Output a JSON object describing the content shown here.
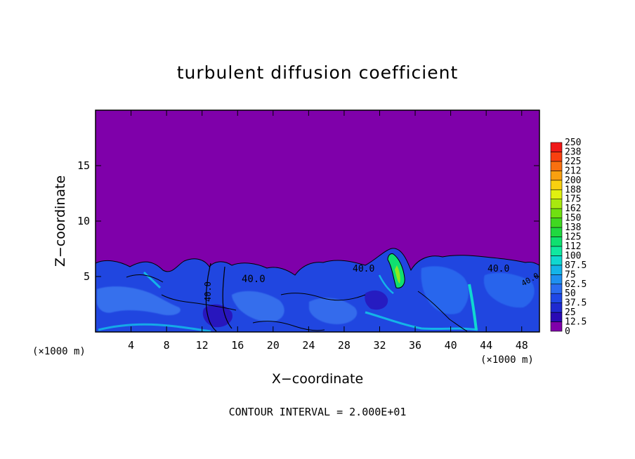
{
  "chart_data": {
    "type": "heatmap",
    "title": "turbulent diffusion coefficient",
    "xlabel": "X−coordinate",
    "ylabel": "Z−coordinate",
    "x_unit_left": "(×1000 m)",
    "x_unit_right": "(×1000 m)",
    "xlim": [
      0,
      50
    ],
    "ylim": [
      0,
      20
    ],
    "xticks": [
      4,
      8,
      12,
      16,
      20,
      24,
      28,
      32,
      36,
      40,
      44,
      48
    ],
    "yticks": [
      5,
      10,
      15
    ],
    "footer": "CONTOUR INTERVAL = 2.000E+01",
    "colorbar": {
      "levels": [
        "0",
        "12.5",
        "25",
        "37.5",
        "50",
        "62.5",
        "75",
        "87.5",
        "100",
        "112",
        "125",
        "138",
        "150",
        "162",
        "175",
        "188",
        "200",
        "212",
        "225",
        "238",
        "250"
      ],
      "colors": [
        "#7f00aa",
        "#2a0ab4",
        "#1f2ad0",
        "#1f48e6",
        "#2a6cf0",
        "#1e90f0",
        "#14b4e8",
        "#10d8d0",
        "#10e8a0",
        "#10e070",
        "#20d840",
        "#40d820",
        "#70e010",
        "#a8e810",
        "#e0f010",
        "#f8d010",
        "#f8a010",
        "#f87010",
        "#f84010",
        "#f01818",
        "#f07070"
      ]
    },
    "contour_labels": [
      "40.0",
      "40.0",
      "40.0",
      "40.0",
      "40.0"
    ],
    "background_color": "#7f00aa"
  }
}
